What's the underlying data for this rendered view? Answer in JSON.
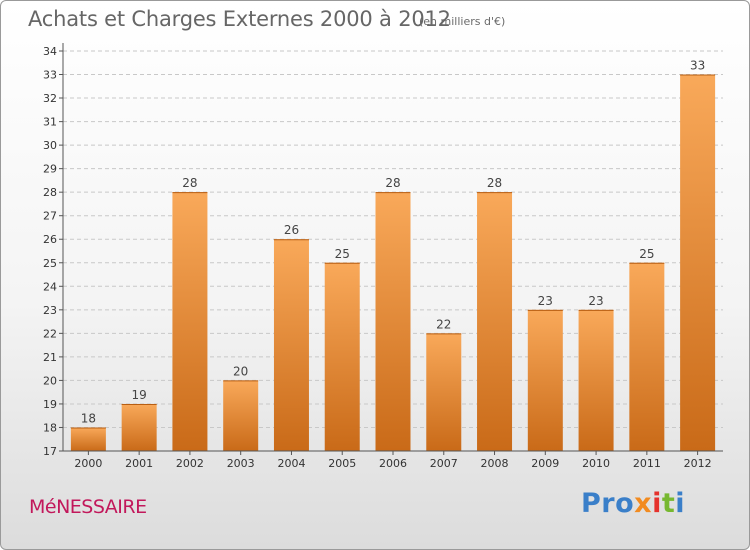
{
  "header": {
    "title": "Achats et Charges Externes 2000 à 2012",
    "unit": "(en milliers d'€)"
  },
  "footer": {
    "place": "MéNESSAIRE",
    "logo_letters": [
      "Pro",
      "x",
      "i",
      "t",
      "i"
    ]
  },
  "colors": {
    "bar_top": "#f9a95a",
    "bar_bottom": "#c96a18",
    "grid": "#c8c8c8",
    "axis": "#555555",
    "place": "#c2185b"
  },
  "chart_data": {
    "type": "bar",
    "categories": [
      "2000",
      "2001",
      "2002",
      "2003",
      "2004",
      "2005",
      "2006",
      "2007",
      "2008",
      "2009",
      "2010",
      "2011",
      "2012"
    ],
    "values": [
      18,
      19,
      28,
      20,
      26,
      25,
      28,
      22,
      28,
      23,
      23,
      25,
      33
    ],
    "title": "Achats et Charges Externes 2000 à 2012",
    "unit": "(en milliers d'€)",
    "ylim": [
      17,
      34
    ],
    "yticks": [
      17,
      18,
      19,
      20,
      21,
      22,
      23,
      24,
      25,
      26,
      27,
      28,
      29,
      30,
      31,
      32,
      33,
      34
    ],
    "grid": true,
    "legend": "none"
  }
}
